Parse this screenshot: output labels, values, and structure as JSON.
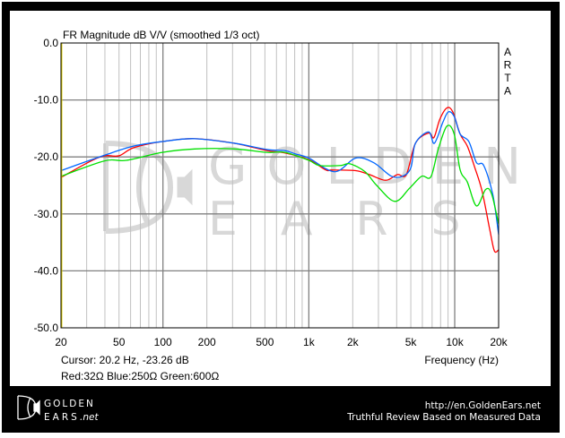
{
  "chart_data": {
    "type": "line",
    "title": "FR Magnitude dB V/V (smoothed 1/3 oct)",
    "xlabel": "Frequency (Hz)",
    "ylabel": "",
    "x_scale": "log",
    "xlim": [
      20,
      20000
    ],
    "ylim": [
      -50,
      0
    ],
    "grid": true,
    "x_ticks": [
      {
        "value": 20,
        "label": "20"
      },
      {
        "value": 50,
        "label": "50"
      },
      {
        "value": 100,
        "label": "100"
      },
      {
        "value": 200,
        "label": "200"
      },
      {
        "value": 500,
        "label": "500"
      },
      {
        "value": 1000,
        "label": "1k"
      },
      {
        "value": 2000,
        "label": "2k"
      },
      {
        "value": 5000,
        "label": "5k"
      },
      {
        "value": 10000,
        "label": "10k"
      },
      {
        "value": 20000,
        "label": "20k"
      }
    ],
    "y_ticks": [
      {
        "value": 0,
        "label": "0.0"
      },
      {
        "value": -10,
        "label": "-10.0"
      },
      {
        "value": -20,
        "label": "-20.0"
      },
      {
        "value": -30,
        "label": "-30.0"
      },
      {
        "value": -40,
        "label": "-40.0"
      },
      {
        "value": -50,
        "label": "-50.0"
      }
    ],
    "side_label": [
      "A",
      "R",
      "T",
      "A"
    ],
    "cursor_text": "Cursor: 20.2 Hz, -23.26 dB",
    "cursor_freq": 20.2,
    "legend_text": "Red:32Ω Blue:250Ω Green:600Ω",
    "series": [
      {
        "name": "32Ω",
        "color": "#ff0000",
        "x": [
          20,
          31.6,
          39.8,
          50,
          62.8,
          99,
          165,
          309,
          517,
          686,
          1000,
          1310,
          1440,
          2090,
          2600,
          3360,
          4050,
          4660,
          5380,
          6620,
          7200,
          7900,
          8830,
          9700,
          10900,
          12200,
          13700,
          15400,
          17400,
          18700,
          20000
        ],
        "y": [
          -23.6,
          -20.8,
          -19.8,
          -19.8,
          -18.4,
          -17.3,
          -16.8,
          -17.6,
          -18.9,
          -19.3,
          -20.5,
          -22.3,
          -22.3,
          -22.4,
          -23.1,
          -24.1,
          -23.1,
          -23.1,
          -17.6,
          -15.8,
          -16.6,
          -13.4,
          -11.4,
          -12.1,
          -16.0,
          -18.1,
          -21.8,
          -26.0,
          -32.8,
          -36.5,
          -36.3
        ]
      },
      {
        "name": "250Ω",
        "color": "#0066ff",
        "x": [
          20,
          39.8,
          62.8,
          99,
          165,
          309,
          517,
          686,
          815,
          1000,
          1506,
          2090,
          2780,
          3690,
          4460,
          5020,
          5380,
          6620,
          7250,
          8300,
          9040,
          9920,
          10900,
          12500,
          14100,
          15800,
          18200,
          20000
        ],
        "y": [
          -22.4,
          -19.7,
          -18.1,
          -17.3,
          -16.8,
          -17.6,
          -18.7,
          -18.9,
          -19.5,
          -20.2,
          -22.6,
          -20.2,
          -21.0,
          -23.4,
          -23.3,
          -21.8,
          -17.6,
          -15.6,
          -17.6,
          -13.9,
          -12.1,
          -12.9,
          -16.0,
          -17.3,
          -21.0,
          -21.5,
          -26.5,
          -33.6
        ]
      },
      {
        "name": "600Ω",
        "color": "#00e000",
        "x": [
          20,
          39.8,
          56,
          99,
          165,
          309,
          517,
          686,
          1000,
          1180,
          1650,
          1910,
          2430,
          2920,
          3880,
          4900,
          5930,
          6860,
          7700,
          8830,
          9920,
          10900,
          12200,
          14100,
          16300,
          17900,
          20000
        ],
        "y": [
          -23.4,
          -20.7,
          -20.6,
          -19.2,
          -18.6,
          -18.6,
          -19.2,
          -19.2,
          -20.6,
          -21.5,
          -21.5,
          -21.2,
          -22.6,
          -25.0,
          -27.8,
          -25.5,
          -23.4,
          -23.5,
          -18.7,
          -14.6,
          -16.0,
          -22.3,
          -24.4,
          -28.6,
          -25.7,
          -26.5,
          -31.8
        ]
      }
    ]
  },
  "watermark": {
    "line1": "GOLDEN",
    "line2": "EARS"
  },
  "footer": {
    "logo_line1": "GOLDEN",
    "logo_line2": "EARS",
    "logo_suffix": ".net",
    "url": "http://en.GoldenEars.net",
    "tagline": "Truthful Review Based on Measured Data"
  }
}
